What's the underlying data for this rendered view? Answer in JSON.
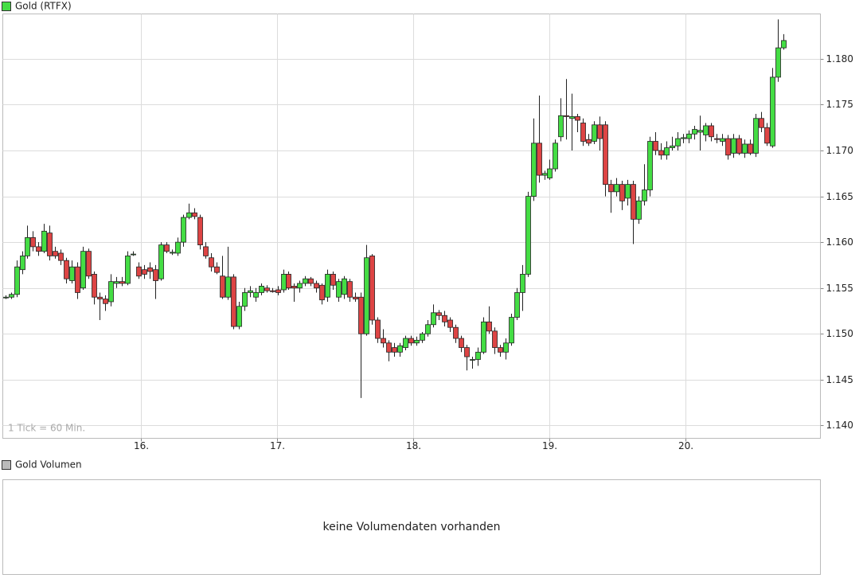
{
  "chart_data": {
    "type": "candlestick",
    "title": "Gold (RTFX)",
    "annotation": "1 Tick = 60 Min.",
    "up_color": "#44dd44",
    "down_color": "#dd4444",
    "grid": true,
    "xlim": [
      14.982,
      20.994
    ],
    "ylim": [
      1.1386,
      1.1849
    ],
    "xticks": [
      {
        "value": 16,
        "label": "16."
      },
      {
        "value": 17,
        "label": "17."
      },
      {
        "value": 18,
        "label": "18."
      },
      {
        "value": 19,
        "label": "19."
      },
      {
        "value": 20,
        "label": "20."
      }
    ],
    "yticks": [
      {
        "value": 1.14,
        "label": "1.140"
      },
      1.145,
      {
        "value": 1.15,
        "label": "1.150"
      },
      1.155,
      {
        "value": 1.16,
        "label": "1.160"
      },
      1.165,
      {
        "value": 1.17,
        "label": "1.170"
      },
      1.175,
      {
        "value": 1.18,
        "label": "1.180"
      }
    ],
    "x": [
      15.0,
      15.041,
      15.082,
      15.123,
      15.163,
      15.204,
      15.245,
      15.286,
      15.327,
      15.368,
      15.409,
      15.449,
      15.49,
      15.531,
      15.572,
      15.613,
      15.654,
      15.694,
      15.735,
      15.776,
      15.817,
      15.858,
      15.899,
      15.94,
      15.98,
      16.021,
      16.062,
      16.103,
      16.144,
      16.185,
      16.226,
      16.266,
      16.307,
      16.348,
      16.389,
      16.43,
      16.471,
      16.511,
      16.552,
      16.593,
      16.634,
      16.675,
      16.716,
      16.757,
      16.797,
      16.838,
      16.879,
      16.92,
      16.961,
      17.002,
      17.043,
      17.083,
      17.124,
      17.165,
      17.206,
      17.247,
      17.288,
      17.328,
      17.369,
      17.41,
      17.451,
      17.492,
      17.533,
      17.574,
      17.614,
      17.655,
      17.696,
      17.737,
      17.778,
      17.819,
      17.86,
      17.9,
      17.941,
      17.982,
      18.023,
      18.064,
      18.105,
      18.145,
      18.186,
      18.227,
      18.268,
      18.309,
      18.35,
      18.391,
      18.431,
      18.472,
      18.513,
      18.554,
      18.595,
      18.636,
      18.677,
      18.717,
      18.758,
      18.799,
      18.84,
      18.881,
      18.922,
      18.963,
      19.003,
      19.044,
      19.085,
      19.126,
      19.167,
      19.208,
      19.248,
      19.289,
      19.33,
      19.371,
      19.412,
      19.453,
      19.494,
      19.534,
      19.575,
      19.616,
      19.657,
      19.698,
      19.739,
      19.78,
      19.82,
      19.861,
      19.902,
      19.943,
      19.984,
      20.025,
      20.065,
      20.106,
      20.147,
      20.188,
      20.229,
      20.27,
      20.311,
      20.351,
      20.392,
      20.433,
      20.474,
      20.515,
      20.556,
      20.597,
      20.637,
      20.678,
      20.719
    ],
    "open": [
      1.154,
      1.154,
      1.1543,
      1.157,
      1.1585,
      1.1605,
      1.1595,
      1.159,
      1.161,
      1.159,
      1.1588,
      1.158,
      1.1558,
      1.1573,
      1.155,
      1.159,
      1.1565,
      1.154,
      1.1538,
      1.1535,
      1.1555,
      1.1557,
      1.1555,
      1.1587,
      1.1573,
      1.157,
      1.1572,
      1.157,
      1.156,
      1.1597,
      1.1588,
      1.1588,
      1.16,
      1.1627,
      1.1632,
      1.1627,
      1.1595,
      1.1583,
      1.1573,
      1.1563,
      1.154,
      1.1562,
      1.1508,
      1.153,
      1.1545,
      1.154,
      1.1545,
      1.155,
      1.1547,
      1.1548,
      1.1548,
      1.1565,
      1.1552,
      1.155,
      1.1555,
      1.156,
      1.1555,
      1.1553,
      1.154,
      1.1565,
      1.154,
      1.1543,
      1.1557,
      1.154,
      1.154,
      1.15,
      1.1585,
      1.1515,
      1.1495,
      1.149,
      1.1485,
      1.148,
      1.1485,
      1.1495,
      1.149,
      1.1493,
      1.15,
      1.151,
      1.1523,
      1.152,
      1.1515,
      1.1507,
      1.1495,
      1.1485,
      1.1472,
      1.1472,
      1.148,
      1.1513,
      1.1503,
      1.1485,
      1.148,
      1.149,
      1.1518,
      1.1545,
      1.1565,
      1.165,
      1.1708,
      1.1673,
      1.167,
      1.168,
      1.1715,
      1.1738,
      1.1735,
      1.1737,
      1.173,
      1.1712,
      1.171,
      1.1728,
      1.1728,
      1.1663,
      1.1655,
      1.1663,
      1.1648,
      1.1663,
      1.1625,
      1.1645,
      1.1657,
      1.171,
      1.17,
      1.1695,
      1.1703,
      1.1705,
      1.1713,
      1.1713,
      1.1718,
      1.172,
      1.1717,
      1.1727,
      1.1713,
      1.171,
      1.1713,
      1.1697,
      1.1713,
      1.1697,
      1.1707,
      1.1697,
      1.1735,
      1.1725,
      1.1705,
      1.178,
      1.1812
    ],
    "high": [
      1.1542,
      1.1545,
      1.158,
      1.159,
      1.1618,
      1.1612,
      1.16,
      1.162,
      1.1618,
      1.1595,
      1.1592,
      1.1583,
      1.158,
      1.1578,
      1.1595,
      1.1593,
      1.1568,
      1.1545,
      1.1542,
      1.1565,
      1.1562,
      1.1562,
      1.159,
      1.159,
      1.1578,
      1.1575,
      1.1578,
      1.1575,
      1.16,
      1.16,
      1.1592,
      1.1605,
      1.163,
      1.1642,
      1.1637,
      1.163,
      1.16,
      1.1588,
      1.1578,
      1.1585,
      1.1595,
      1.1565,
      1.1535,
      1.155,
      1.1552,
      1.155,
      1.1555,
      1.1553,
      1.155,
      1.1552,
      1.157,
      1.1568,
      1.1555,
      1.1558,
      1.1563,
      1.1562,
      1.1558,
      1.1555,
      1.157,
      1.1568,
      1.156,
      1.1563,
      1.156,
      1.1545,
      1.1545,
      1.1597,
      1.1587,
      1.1518,
      1.1505,
      1.1493,
      1.149,
      1.149,
      1.1498,
      1.1498,
      1.1497,
      1.1502,
      1.1515,
      1.1532,
      1.1526,
      1.1525,
      1.1518,
      1.151,
      1.1498,
      1.1488,
      1.1475,
      1.1485,
      1.1518,
      1.153,
      1.1507,
      1.1488,
      1.1495,
      1.1522,
      1.155,
      1.1575,
      1.1655,
      1.1735,
      1.176,
      1.1678,
      1.169,
      1.1712,
      1.1757,
      1.1778,
      1.1762,
      1.174,
      1.1735,
      1.1718,
      1.1732,
      1.1737,
      1.1732,
      1.1668,
      1.167,
      1.1667,
      1.1668,
      1.1667,
      1.165,
      1.1685,
      1.1715,
      1.172,
      1.1708,
      1.171,
      1.1715,
      1.172,
      1.1718,
      1.1722,
      1.1727,
      1.1738,
      1.173,
      1.173,
      1.1718,
      1.1718,
      1.1717,
      1.1718,
      1.1717,
      1.1712,
      1.1712,
      1.174,
      1.1742,
      1.173,
      1.179,
      1.1843,
      1.1827
    ],
    "low": [
      1.1538,
      1.1538,
      1.154,
      1.1565,
      1.1582,
      1.159,
      1.1585,
      1.1588,
      1.158,
      1.1582,
      1.1575,
      1.1555,
      1.1555,
      1.1538,
      1.1548,
      1.156,
      1.1532,
      1.1515,
      1.1525,
      1.153,
      1.155,
      1.1552,
      1.1553,
      1.1585,
      1.156,
      1.156,
      1.156,
      1.1538,
      1.1558,
      1.1588,
      1.1586,
      1.1585,
      1.1595,
      1.1625,
      1.1625,
      1.1592,
      1.1582,
      1.1568,
      1.1565,
      1.1538,
      1.1537,
      1.1505,
      1.1505,
      1.1525,
      1.154,
      1.1535,
      1.1542,
      1.1545,
      1.1545,
      1.1542,
      1.1545,
      1.1548,
      1.1535,
      1.1545,
      1.1552,
      1.1552,
      1.1545,
      1.1532,
      1.1535,
      1.1548,
      1.1535,
      1.1538,
      1.1535,
      1.1535,
      1.143,
      1.1498,
      1.151,
      1.149,
      1.1485,
      1.147,
      1.1475,
      1.1475,
      1.1482,
      1.1487,
      1.1487,
      1.149,
      1.1497,
      1.1507,
      1.1515,
      1.1508,
      1.1502,
      1.149,
      1.148,
      1.146,
      1.1462,
      1.1465,
      1.1478,
      1.15,
      1.1478,
      1.1475,
      1.1472,
      1.1487,
      1.1515,
      1.1525,
      1.1562,
      1.1645,
      1.1665,
      1.1668,
      1.1668,
      1.1677,
      1.171,
      1.1712,
      1.17,
      1.172,
      1.1705,
      1.1705,
      1.1707,
      1.17,
      1.165,
      1.1632,
      1.165,
      1.1635,
      1.164,
      1.1598,
      1.162,
      1.164,
      1.165,
      1.1695,
      1.169,
      1.169,
      1.17,
      1.17,
      1.1708,
      1.1708,
      1.1712,
      1.17,
      1.171,
      1.171,
      1.1708,
      1.1705,
      1.169,
      1.1692,
      1.1695,
      1.1692,
      1.1695,
      1.1693,
      1.172,
      1.1705,
      1.1703,
      1.1775,
      1.181
    ],
    "close": [
      1.154,
      1.1543,
      1.1573,
      1.1585,
      1.1605,
      1.1595,
      1.159,
      1.1612,
      1.1585,
      1.1585,
      1.158,
      1.156,
      1.1573,
      1.1545,
      1.159,
      1.1563,
      1.154,
      1.1538,
      1.1533,
      1.1557,
      1.1557,
      1.1555,
      1.1585,
      1.1587,
      1.1563,
      1.1565,
      1.1568,
      1.1558,
      1.1597,
      1.159,
      1.1589,
      1.16,
      1.1627,
      1.1632,
      1.1628,
      1.1597,
      1.1585,
      1.1573,
      1.1567,
      1.154,
      1.1562,
      1.1508,
      1.153,
      1.1545,
      1.1547,
      1.1545,
      1.1552,
      1.1547,
      1.1546,
      1.1545,
      1.1565,
      1.155,
      1.155,
      1.1555,
      1.156,
      1.1555,
      1.155,
      1.1537,
      1.1565,
      1.1553,
      1.1557,
      1.156,
      1.154,
      1.1538,
      1.15,
      1.1583,
      1.1515,
      1.1495,
      1.149,
      1.148,
      1.148,
      1.1487,
      1.1495,
      1.149,
      1.1493,
      1.15,
      1.151,
      1.1523,
      1.152,
      1.1513,
      1.1507,
      1.1495,
      1.1485,
      1.1475,
      1.1472,
      1.148,
      1.1513,
      1.1503,
      1.1485,
      1.148,
      1.149,
      1.1518,
      1.1545,
      1.1565,
      1.165,
      1.1708,
      1.1673,
      1.1675,
      1.168,
      1.1708,
      1.1738,
      1.1737,
      1.1737,
      1.1733,
      1.171,
      1.1708,
      1.1728,
      1.1713,
      1.1663,
      1.1655,
      1.1663,
      1.1645,
      1.1663,
      1.1625,
      1.1645,
      1.1657,
      1.171,
      1.17,
      1.1695,
      1.1703,
      1.1705,
      1.1713,
      1.1714,
      1.1718,
      1.1723,
      1.1722,
      1.1727,
      1.1715,
      1.1712,
      1.1713,
      1.1695,
      1.1713,
      1.1697,
      1.1707,
      1.1697,
      1.1735,
      1.1725,
      1.1708,
      1.178,
      1.1812,
      1.182
    ]
  },
  "volume_panel": {
    "title": "Gold Volumen",
    "message": "keine Volumendaten vorhanden"
  }
}
